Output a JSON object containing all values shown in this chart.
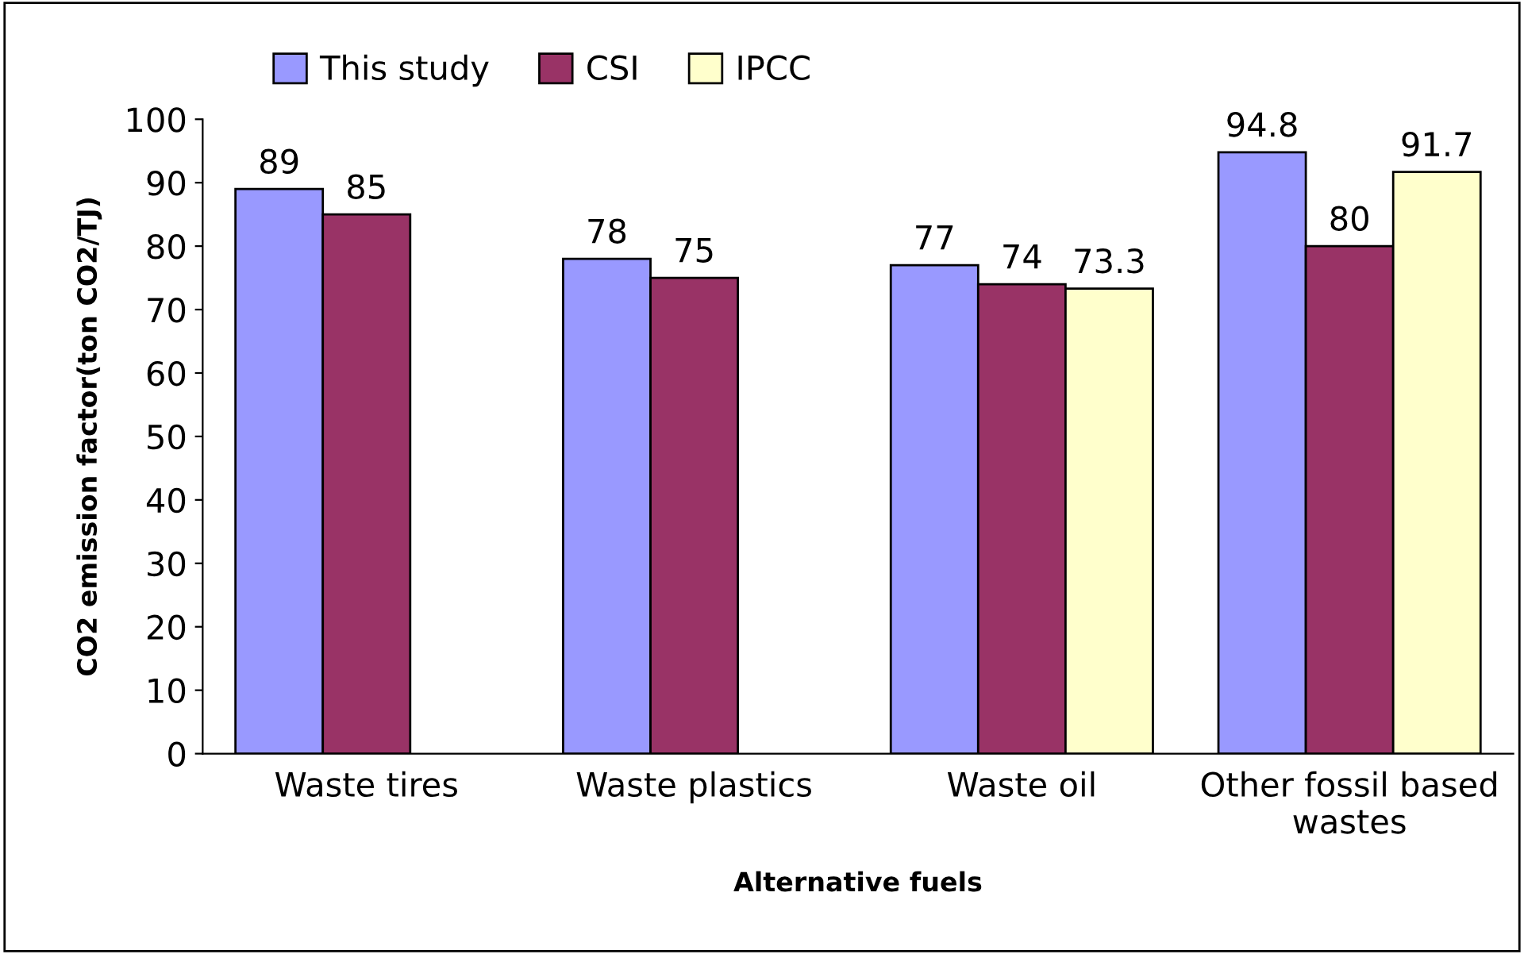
{
  "chart_data": {
    "type": "bar",
    "xlabel": "Alternative fuels",
    "ylabel": "CO2 emission factor(ton CO2/TJ)",
    "categories": [
      "Waste tires",
      "Waste plastics",
      "Waste oil",
      "Other fossil based\nwastes"
    ],
    "series": [
      {
        "name": "This study",
        "color": "#9999ff",
        "values": [
          89,
          78,
          77,
          94.8
        ]
      },
      {
        "name": "CSI",
        "color": "#993366",
        "values": [
          85,
          75,
          74,
          80
        ]
      },
      {
        "name": "IPCC",
        "color": "#ffffcc",
        "values": [
          null,
          null,
          73.3,
          91.7
        ]
      }
    ],
    "ylim": [
      0,
      100
    ],
    "yticks": [
      0,
      10,
      20,
      30,
      40,
      50,
      60,
      70,
      80,
      90,
      100
    ],
    "data_labels": true,
    "legend": "top left",
    "grid": false
  }
}
